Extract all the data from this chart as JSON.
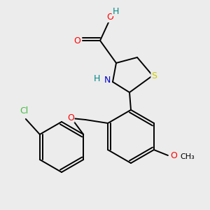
{
  "background_color": "#ececec",
  "bond_color": "#000000",
  "atom_colors": {
    "O": "#ff0000",
    "N": "#0000cc",
    "S": "#cccc00",
    "Cl": "#44bb44",
    "H": "#008888",
    "C": "#000000"
  }
}
